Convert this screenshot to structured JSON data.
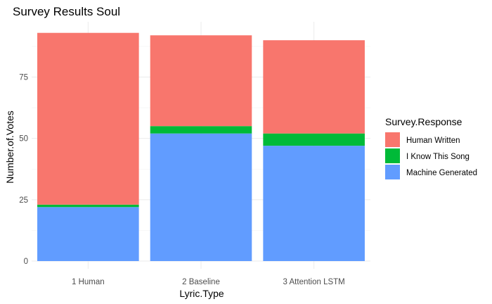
{
  "chart_data": {
    "type": "bar",
    "stacked": true,
    "title": "Survey Results Soul",
    "xlabel": "Lyric.Type",
    "ylabel": "Number.of.Votes",
    "categories": [
      "1 Human",
      "2 Baseline",
      "3 Attention LSTM"
    ],
    "series": [
      {
        "name": "Machine Generated",
        "color": "#619CFF",
        "values": [
          22,
          52,
          47
        ]
      },
      {
        "name": "I Know This Song",
        "color": "#00BA38",
        "values": [
          1,
          3,
          5
        ]
      },
      {
        "name": "Human Written",
        "color": "#F8766D",
        "values": [
          70,
          37,
          38
        ]
      }
    ],
    "ylim": [
      0,
      93
    ],
    "yticks": [
      0,
      25,
      50,
      75
    ],
    "grid": true,
    "legend": {
      "title": "Survey.Response",
      "placement": "right",
      "items": [
        "Human Written",
        "I Know This Song",
        "Machine Generated"
      ]
    }
  }
}
